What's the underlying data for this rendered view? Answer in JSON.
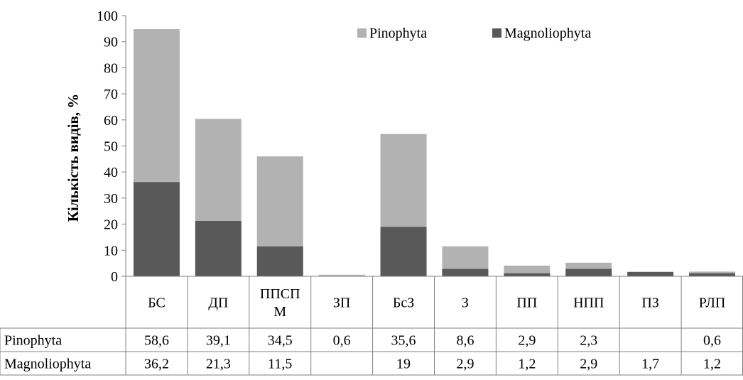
{
  "chart_data": {
    "type": "bar",
    "stacked": true,
    "title": "",
    "xlabel": "",
    "ylabel": "Кількість видів, %",
    "ylim": [
      0,
      100
    ],
    "yticks": [
      0,
      10,
      20,
      30,
      40,
      50,
      60,
      70,
      80,
      90,
      100
    ],
    "categories": [
      [
        "БС"
      ],
      [
        "ДП"
      ],
      [
        "ППСП",
        "М"
      ],
      [
        "ЗП"
      ],
      [
        "БсЗ"
      ],
      [
        "З"
      ],
      [
        "ПП"
      ],
      [
        "НПП"
      ],
      [
        "ПЗ"
      ],
      [
        "РЛП"
      ]
    ],
    "series": [
      {
        "name": "Magnoliophyta",
        "color": "#595959",
        "values": [
          36.2,
          21.3,
          11.5,
          null,
          19,
          2.9,
          1.2,
          2.9,
          1.7,
          1.2
        ]
      },
      {
        "name": "Pinophyta",
        "color": "#b2b2b2",
        "values": [
          58.6,
          39.1,
          34.5,
          0.6,
          35.6,
          8.6,
          2.9,
          2.3,
          null,
          0.6
        ]
      }
    ],
    "legend_position": "top-right",
    "grid": false,
    "data_table": {
      "rows": [
        {
          "label": "Pinophyta",
          "cells": [
            "58,6",
            "39,1",
            "34,5",
            "0,6",
            "35,6",
            "8,6",
            "2,9",
            "2,3",
            "",
            "0,6"
          ]
        },
        {
          "label": "Magnoliophyta",
          "cells": [
            "36,2",
            "21,3",
            "11,5",
            "",
            "19",
            "2,9",
            "1,2",
            "2,9",
            "1,7",
            "1,2"
          ]
        }
      ]
    }
  }
}
